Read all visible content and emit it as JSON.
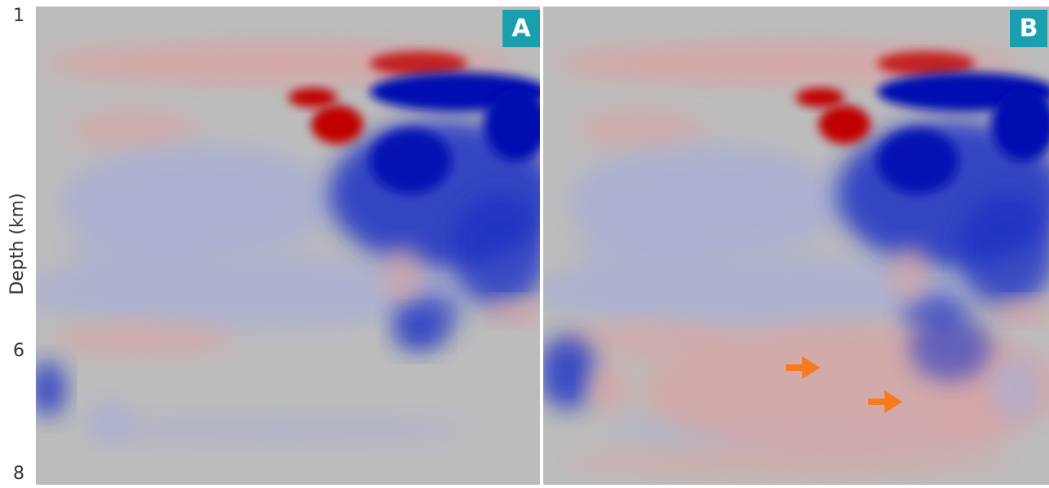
{
  "y_axis": {
    "label": "Depth (km)",
    "ticks": [
      "1",
      "6",
      "8"
    ]
  },
  "panels": [
    {
      "label": "A"
    },
    {
      "label": "B"
    }
  ]
}
